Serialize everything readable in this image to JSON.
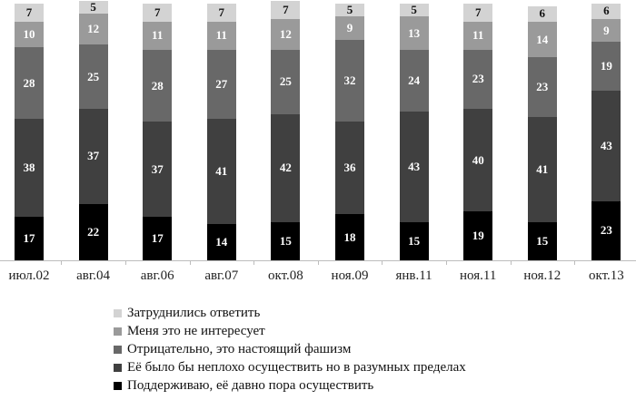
{
  "chart_data": {
    "type": "bar",
    "stacked": true,
    "title": "",
    "xlabel": "",
    "ylabel": "",
    "ylim": [
      0,
      100
    ],
    "grid": false,
    "legend_position": "bottom",
    "categories": [
      "июл.02",
      "авг.04",
      "авг.06",
      "авг.07",
      "окт.08",
      "ноя.09",
      "янв.11",
      "ноя.11",
      "ноя.12",
      "окт.13"
    ],
    "series": [
      {
        "name": "Поддерживаю, её давно пора осуществить",
        "color": "#000000",
        "label_color": "#ffffff",
        "values": [
          17,
          22,
          17,
          14,
          15,
          18,
          15,
          19,
          15,
          23
        ]
      },
      {
        "name": "Её было бы неплохо осуществить но в разумных пределах",
        "color": "#404040",
        "label_color": "#ffffff",
        "values": [
          38,
          37,
          37,
          41,
          42,
          36,
          43,
          40,
          41,
          43
        ]
      },
      {
        "name": "Отрицательно, это настоящий фашизм",
        "color": "#686868",
        "label_color": "#ffffff",
        "values": [
          28,
          25,
          28,
          27,
          25,
          32,
          24,
          23,
          23,
          19
        ]
      },
      {
        "name": "Меня это не интересует",
        "color": "#9a9a9a",
        "label_color": "#ffffff",
        "values": [
          10,
          12,
          11,
          11,
          12,
          9,
          13,
          11,
          14,
          9
        ]
      },
      {
        "name": "Затруднились ответить",
        "color": "#d3d3d3",
        "label_color": "#111111",
        "values": [
          7,
          5,
          7,
          7,
          7,
          5,
          5,
          7,
          6,
          6
        ]
      }
    ],
    "legend_order": [
      4,
      3,
      2,
      1,
      0
    ]
  }
}
